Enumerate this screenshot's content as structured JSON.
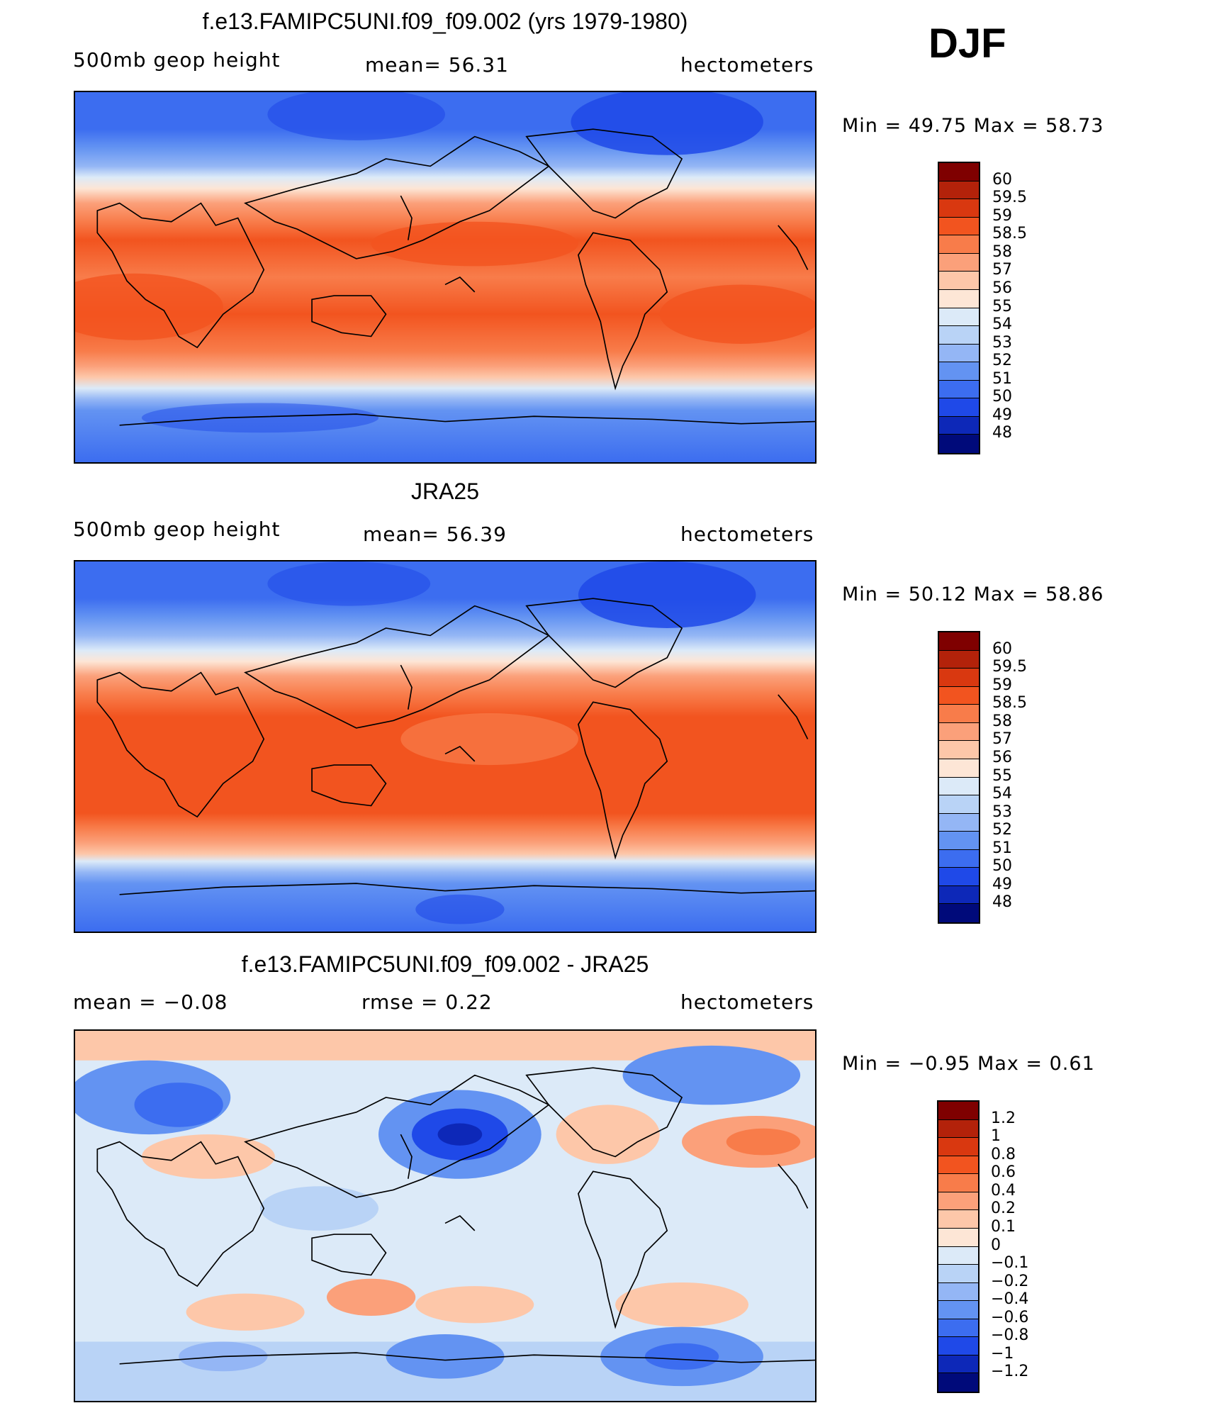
{
  "season": "DJF",
  "panels": [
    {
      "title": "f.e13.FAMIPC5UNI.f09_f09.002 (yrs 1979-1980)",
      "left": "500mb geop height",
      "center": "mean=   56.31",
      "right": "hectometers",
      "minmax": "Min  =    49.75  Max  =    58.73"
    },
    {
      "title": "JRA25",
      "left": "500mb geop height",
      "center": "mean=   56.39",
      "right": "hectometers",
      "minmax": "Min  =    50.12  Max  =    58.86"
    },
    {
      "title": "f.e13.FAMIPC5UNI.f09_f09.002 - JRA25",
      "left": "mean  =    −0.08",
      "center": "rmse  =     0.22",
      "right": "hectometers",
      "minmax": "Min  =    −0.95  Max  =     0.61"
    }
  ],
  "colorbars": {
    "field": {
      "labels": [
        "60",
        "59.5",
        "59",
        "58.5",
        "58",
        "57",
        "56",
        "55",
        "54",
        "53",
        "52",
        "51",
        "50",
        "49",
        "48"
      ],
      "colors": [
        "#7f0000",
        "#b3220a",
        "#d93810",
        "#f2541f",
        "#f87c4a",
        "#fba07a",
        "#fdc7a9",
        "#fde6d6",
        "#dceaf8",
        "#b9d3f6",
        "#94b6f5",
        "#6393f2",
        "#3c6df0",
        "#1f49e8",
        "#0d28b8",
        "#000a7a"
      ]
    },
    "diff": {
      "labels": [
        "1.2",
        "1",
        "0.8",
        "0.6",
        "0.4",
        "0.2",
        "0.1",
        "0",
        "−0.1",
        "−0.2",
        "−0.4",
        "−0.6",
        "−0.8",
        "−1",
        "−1.2"
      ],
      "colors": [
        "#7f0000",
        "#b3220a",
        "#d93810",
        "#f2541f",
        "#f87c4a",
        "#fba07a",
        "#fdc7a9",
        "#fde6d6",
        "#dceaf8",
        "#b9d3f6",
        "#94b6f5",
        "#6393f2",
        "#3c6df0",
        "#1f49e8",
        "#0d28b8",
        "#000a7a"
      ]
    }
  }
}
